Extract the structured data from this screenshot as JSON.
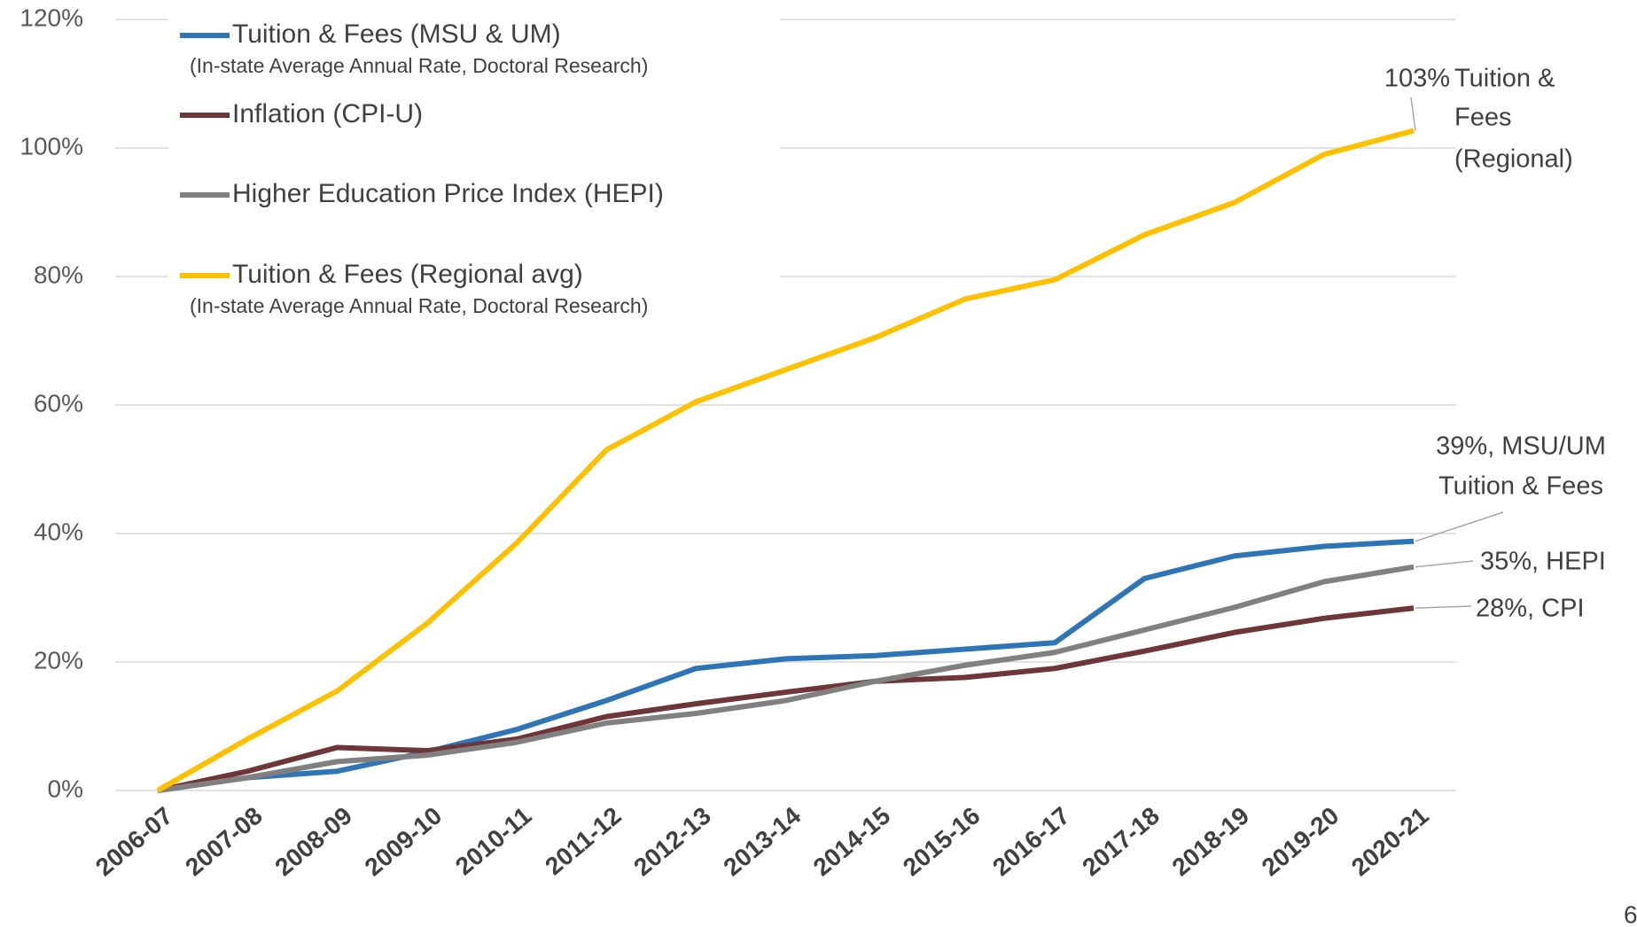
{
  "chart_data": {
    "type": "line",
    "categories": [
      "2006-07",
      "2007-08",
      "2008-09",
      "2009-10",
      "2010-11",
      "2011-12",
      "2012-13",
      "2013-14",
      "2014-15",
      "2015-16",
      "2016-17",
      "2017-18",
      "2018-19",
      "2019-20",
      "2020-21"
    ],
    "ylim": [
      0,
      120
    ],
    "yticks": [
      {
        "value": 0,
        "label": "0%"
      },
      {
        "value": 20,
        "label": "20%"
      },
      {
        "value": 40,
        "label": "40%"
      },
      {
        "value": 60,
        "label": "60%"
      },
      {
        "value": 80,
        "label": "80%"
      },
      {
        "value": 100,
        "label": "100%"
      },
      {
        "value": 120,
        "label": "120%"
      }
    ],
    "grid": true,
    "legend": "top-left",
    "series": [
      {
        "name": "Tuition & Fees (MSU & UM)",
        "note": "(In-state Average Annual Rate, Doctoral Research)",
        "color": "#2e75b6",
        "values": [
          0,
          2,
          3,
          6,
          9.5,
          14,
          19,
          20.5,
          21,
          22,
          23,
          33,
          36.5,
          38,
          38.8
        ],
        "end_label": [
          "39%, MSU/UM",
          "Tuition & Fees"
        ]
      },
      {
        "name": "Inflation (CPI-U)",
        "color": "#6e3638",
        "values": [
          0,
          3,
          6.7,
          6.2,
          8,
          11.5,
          13.5,
          15.3,
          17,
          17.6,
          19,
          21.7,
          24.6,
          26.8,
          28.4
        ],
        "end_label": [
          "28%, CPI"
        ]
      },
      {
        "name": "Higher Education Price Index (HEPI)",
        "color": "#808080",
        "values": [
          0,
          2,
          4.5,
          5.5,
          7.5,
          10.5,
          12,
          14,
          17,
          19.5,
          21.5,
          25,
          28.5,
          32.5,
          34.8
        ],
        "end_label": [
          "35%, HEPI"
        ]
      },
      {
        "name": "Tuition & Fees (Regional avg)",
        "note": "(In-state Average Annual Rate, Doctoral Research)",
        "color": "#ffc000",
        "values": [
          0,
          8,
          15.5,
          26,
          38.5,
          53,
          60.5,
          65.5,
          70.5,
          76.5,
          79.5,
          86.5,
          91.5,
          99,
          102.7
        ],
        "end_value_label": "103%",
        "end_label": [
          "Tuition &",
          "Fees",
          "(Regional)"
        ]
      }
    ],
    "page_number": "6"
  }
}
